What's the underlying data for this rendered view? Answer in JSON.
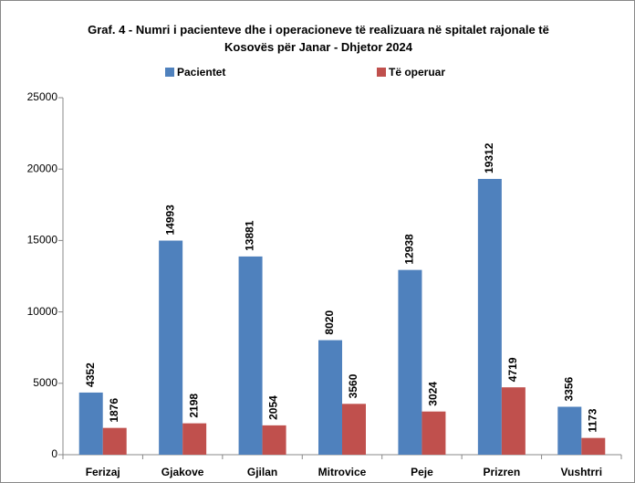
{
  "chart_data": {
    "type": "bar",
    "title": "Graf. 4 - Numri i pacienteve dhe i operacioneve të realizuara në spitalet rajonale të Kosovës për Janar - Dhjetor 2024",
    "categories": [
      "Ferizaj",
      "Gjakove",
      "Gjilan",
      "Mitrovice",
      "Peje",
      "Prizren",
      "Vushtrri"
    ],
    "series": [
      {
        "name": "Pacientet",
        "color": "#4f81bd",
        "values": [
          4352,
          14993,
          13881,
          8020,
          12938,
          19312,
          3356
        ]
      },
      {
        "name": "Të operuar",
        "color": "#c0504d",
        "values": [
          1876,
          2198,
          2054,
          3560,
          3024,
          4719,
          1173
        ]
      }
    ],
    "ylim": [
      0,
      25000
    ],
    "yticks": [
      0,
      5000,
      10000,
      15000,
      20000,
      25000
    ],
    "grid": false,
    "legend": "top"
  }
}
